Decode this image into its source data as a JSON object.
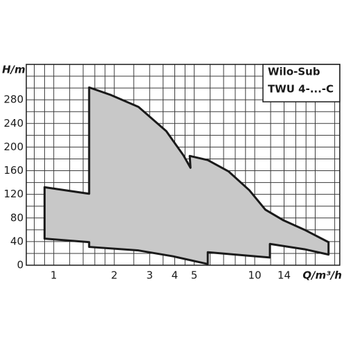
{
  "chart_data": {
    "type": "area",
    "y_label": "H/m",
    "x_label": "Q/m³/h",
    "legend_lines": [
      "Wilo-Sub",
      "TWU 4-...-C"
    ],
    "x": [
      0.9,
      1.5,
      1.5,
      1.93,
      2.64,
      3.63,
      4.42,
      4.79,
      4.75,
      5.84,
      7.4,
      9.4,
      11.3,
      13.9,
      17.7,
      23.3,
      23.3,
      17.7,
      11.9,
      11.9,
      5.84,
      5.84,
      3.93,
      2.64,
      1.5,
      1.5,
      0.9
    ],
    "values": [
      132,
      121,
      301,
      288,
      268,
      227,
      186,
      165,
      185,
      178,
      159,
      127,
      94,
      76,
      60,
      39,
      18,
      27,
      36,
      13,
      22,
      2,
      15,
      25,
      31,
      39,
      45
    ],
    "color": "#c8c8c8",
    "outline_color": "#1a1a1a",
    "x_log": true,
    "xlim": [
      0.73,
      26.5
    ],
    "ylim": [
      0,
      340
    ],
    "xticks": [
      1,
      2,
      3,
      4,
      5,
      10,
      14
    ],
    "yticks": [
      0,
      40,
      80,
      120,
      160,
      200,
      240,
      280
    ],
    "x_minor_grid": [
      0.8,
      0.9,
      1.2,
      1.4,
      1.6,
      1.8,
      2.5,
      3.5,
      4.5,
      6,
      7,
      8,
      9,
      12,
      16,
      18,
      20,
      25
    ],
    "y_minor_grid": [
      20,
      60,
      100,
      140,
      180,
      220,
      260,
      300,
      320
    ],
    "grid": true
  }
}
